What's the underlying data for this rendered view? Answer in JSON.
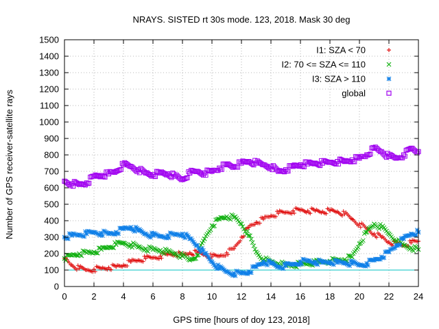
{
  "chart_data": {
    "type": "scatter",
    "title": "NRAYS. SISTED rt 30s mode. 123, 2018. Mask 30 deg",
    "xlabel": "GPS time [hours of doy 123, 2018]",
    "ylabel": "Number of GPS receiver-satellite rays",
    "xlim": [
      0,
      24
    ],
    "ylim": [
      0,
      1500
    ],
    "xticks": [
      0,
      2,
      4,
      6,
      8,
      10,
      12,
      14,
      16,
      18,
      20,
      22,
      24
    ],
    "yticks": [
      0,
      100,
      200,
      300,
      400,
      500,
      600,
      700,
      800,
      900,
      1000,
      1100,
      1200,
      1300,
      1400,
      1500
    ],
    "grid": true,
    "legend_position": "top-right",
    "reference_line": {
      "y": 100,
      "color": "#00c0c0"
    },
    "series": [
      {
        "name": "I1: SZA < 70",
        "marker": "+",
        "color": "#e01010",
        "x": [
          0,
          0.5,
          1,
          1.5,
          2,
          2.5,
          3,
          3.5,
          4,
          4.5,
          5,
          5.5,
          6,
          6.5,
          7,
          7.5,
          8,
          8.5,
          9,
          9.5,
          10,
          10.5,
          11,
          11.5,
          12,
          12.5,
          13,
          13.5,
          14,
          14.5,
          15,
          15.5,
          16,
          16.5,
          17,
          17.5,
          18,
          18.5,
          19,
          19.5,
          20,
          20.5,
          21,
          21.5,
          22,
          22.5,
          23,
          23.5,
          24
        ],
        "values": [
          170,
          130,
          110,
          100,
          105,
          110,
          115,
          120,
          130,
          150,
          160,
          170,
          175,
          185,
          195,
          200,
          190,
          205,
          205,
          195,
          180,
          185,
          205,
          230,
          300,
          360,
          390,
          410,
          430,
          445,
          450,
          460,
          465,
          460,
          460,
          455,
          460,
          455,
          440,
          410,
          380,
          350,
          320,
          300,
          270,
          260,
          250,
          265,
          275
        ]
      },
      {
        "name": "I2: 70 <= SZA <= 110",
        "marker": "x",
        "color": "#10b010",
        "x": [
          0,
          0.5,
          1,
          1.5,
          2,
          2.5,
          3,
          3.5,
          4,
          4.5,
          5,
          5.5,
          6,
          6.5,
          7,
          7.5,
          8,
          8.5,
          9,
          9.5,
          10,
          10.5,
          11,
          11.5,
          12,
          12.5,
          13,
          13.5,
          14,
          14.5,
          15,
          15.5,
          16,
          16.5,
          17,
          17.5,
          18,
          18.5,
          19,
          19.5,
          20,
          20.5,
          21,
          21.5,
          22,
          22.5,
          23,
          23.5,
          24
        ],
        "values": [
          170,
          190,
          200,
          205,
          210,
          225,
          240,
          255,
          265,
          255,
          240,
          230,
          225,
          220,
          210,
          200,
          185,
          160,
          190,
          290,
          370,
          410,
          425,
          420,
          380,
          310,
          210,
          165,
          150,
          140,
          130,
          130,
          135,
          140,
          145,
          150,
          155,
          160,
          165,
          180,
          260,
          330,
          380,
          360,
          320,
          280,
          250,
          235,
          225
        ]
      },
      {
        "name": "I3: SZA > 110",
        "marker": "*",
        "color": "#1080e8",
        "x": [
          0,
          0.5,
          1,
          1.5,
          2,
          2.5,
          3,
          3.5,
          4,
          4.5,
          5,
          5.5,
          6,
          6.5,
          7,
          7.5,
          8,
          8.5,
          9,
          9.5,
          10,
          10.5,
          11,
          11.5,
          12,
          12.5,
          13,
          13.5,
          14,
          14.5,
          15,
          15.5,
          16,
          16.5,
          17,
          17.5,
          18,
          18.5,
          19,
          19.5,
          20,
          20.5,
          21,
          21.5,
          22,
          22.5,
          23,
          23.5,
          24
        ],
        "values": [
          300,
          310,
          315,
          320,
          330,
          325,
          320,
          330,
          350,
          360,
          340,
          320,
          310,
          305,
          310,
          315,
          320,
          290,
          250,
          200,
          150,
          110,
          90,
          80,
          80,
          90,
          120,
          150,
          140,
          120,
          125,
          135,
          150,
          155,
          150,
          145,
          150,
          145,
          145,
          140,
          130,
          140,
          160,
          180,
          210,
          250,
          290,
          320,
          330
        ]
      },
      {
        "name": "global",
        "marker": "square",
        "color": "#a000f0",
        "x": [
          0,
          0.5,
          1,
          1.5,
          2,
          2.5,
          3,
          3.5,
          4,
          4.5,
          5,
          5.5,
          6,
          6.5,
          7,
          7.5,
          8,
          8.5,
          9,
          9.5,
          10,
          10.5,
          11,
          11.5,
          12,
          12.5,
          13,
          13.5,
          14,
          14.5,
          15,
          15.5,
          16,
          16.5,
          17,
          17.5,
          18,
          18.5,
          19,
          19.5,
          20,
          20.5,
          21,
          21.5,
          22,
          22.5,
          23,
          23.5,
          24
        ],
        "values": [
          640,
          625,
          620,
          630,
          670,
          675,
          685,
          700,
          740,
          730,
          710,
          690,
          680,
          690,
          685,
          670,
          650,
          690,
          700,
          690,
          700,
          720,
          740,
          730,
          750,
          760,
          750,
          740,
          730,
          700,
          710,
          730,
          740,
          745,
          750,
          750,
          755,
          760,
          760,
          770,
          780,
          800,
          840,
          820,
          790,
          780,
          800,
          840,
          820
        ]
      }
    ]
  }
}
